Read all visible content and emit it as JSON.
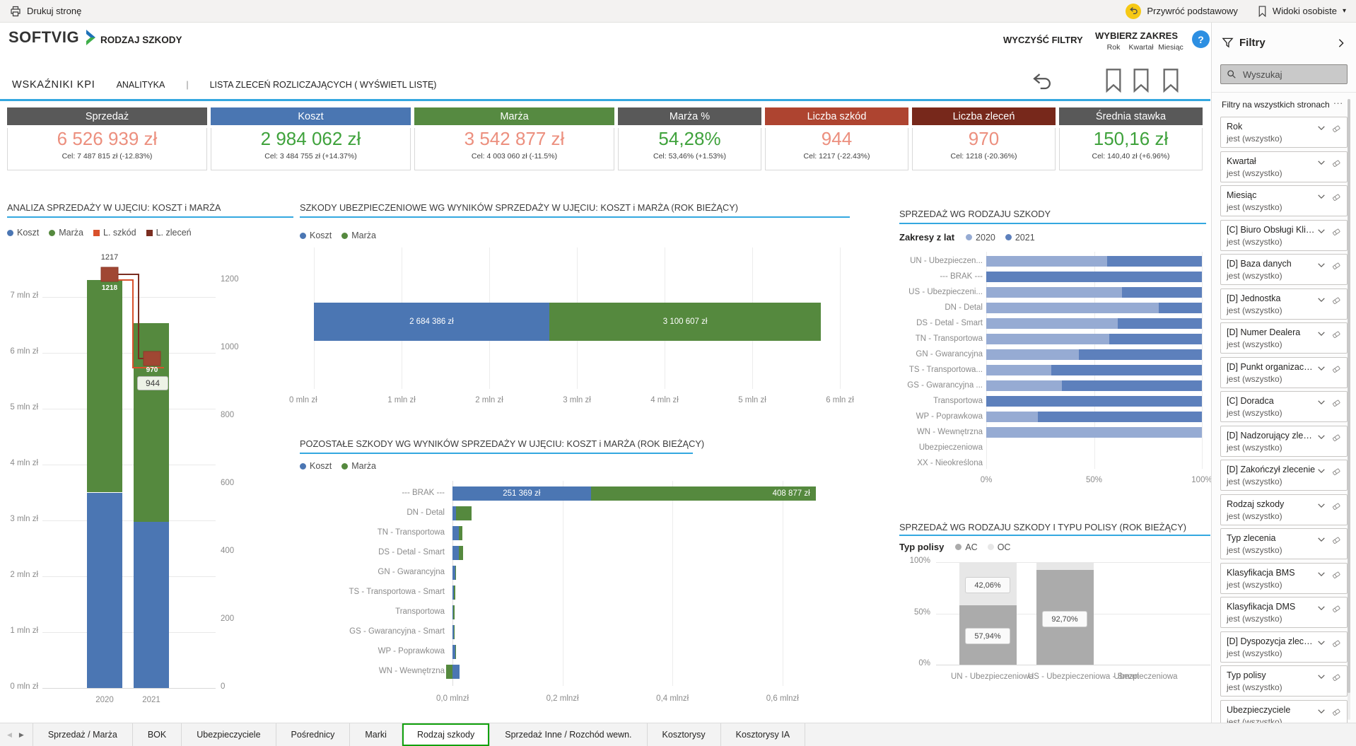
{
  "topbar": {
    "print_label": "Drukuj stronę",
    "reset_label": "Przywróć podstawowy",
    "views_label": "Widoki osobiste",
    "views_caret": "▾"
  },
  "header": {
    "logo_text": "SOFTVIG",
    "title": "RODZAJ SZKODY",
    "clear_filters_label": "WYCZYŚĆ FILTRY",
    "select_range_label": "WYBIERZ ZAKRES",
    "range_options": [
      "Rok",
      "Kwartał",
      "Miesiąc"
    ],
    "help_label": "?"
  },
  "subtabs": {
    "items": [
      {
        "label": "WSKAŹNIKI KPI",
        "style": "primary"
      },
      {
        "label": "ANALITYKA",
        "style": "secondary"
      },
      {
        "label": "|",
        "style": "sep"
      },
      {
        "label": "LISTA ZLECEŃ ROZLICZAJĄCYCH ( WYŚWIETL LISTĘ)",
        "style": "secondary"
      }
    ]
  },
  "kpi_cards": [
    {
      "label": "Sprzedaż",
      "header_color": "#595959",
      "value": "6 526 939 zł",
      "value_color": "#EC8F7E",
      "target": "Cel: 7 487 815 zł (-12.83%)"
    },
    {
      "label": "Koszt",
      "header_color": "#4A76B2",
      "value": "2 984 062 zł",
      "value_color": "#3FA23C",
      "target": "Cel: 3 484 755 zł (+14.37%)"
    },
    {
      "label": "Marża",
      "header_color": "#568A41",
      "value": "3 542 877 zł",
      "value_color": "#EC8F7E",
      "target": "Cel: 4 003 060 zł (-11.5%)"
    },
    {
      "label": "Marża %",
      "header_color": "#595959",
      "value": "54,28%",
      "value_color": "#3FA23C",
      "target": "Cel: 53,46% (+1.53%)"
    },
    {
      "label": "Liczba szkód",
      "header_color": "#AE4430",
      "value": "944",
      "value_color": "#EC8F7E",
      "target": "Cel: 1217 (-22.43%)"
    },
    {
      "label": "Liczba zleceń",
      "header_color": "#77281B",
      "value": "970",
      "value_color": "#EC8F7E",
      "target": "Cel: 1218 (-20.36%)"
    },
    {
      "label": "Średnia stawka",
      "header_color": "#595959",
      "value": "150,16 zł",
      "value_color": "#3FA23C",
      "target": "Cel: 140,40 zł (+6.96%)"
    }
  ],
  "chart_data": [
    {
      "id": "analiza",
      "type": "bar",
      "title": "ANALIZA SPRZEDAŻY W UJĘCIU: KOSZT i MARŻA",
      "legend": [
        {
          "label": "Koszt",
          "color": "#4B76B3",
          "marker": "circle"
        },
        {
          "label": "Marża",
          "color": "#55893E",
          "marker": "circle"
        },
        {
          "label": "L. szkód",
          "color": "#D9512C",
          "marker": "square"
        },
        {
          "label": "L. zleceń",
          "color": "#7B2E21",
          "marker": "square"
        }
      ],
      "categories": [
        "2020",
        "2021"
      ],
      "series": [
        {
          "name": "Koszt",
          "values_mln": [
            3.5,
            2.98
          ],
          "color": "#4B76B3"
        },
        {
          "name": "Marża",
          "values_mln": [
            3.8,
            3.55
          ],
          "color": "#55893E"
        }
      ],
      "line_series": [
        {
          "name": "L. szkód",
          "values": [
            1217,
            944
          ],
          "color": "#D9512C"
        },
        {
          "name": "L. zleceń",
          "values": [
            1218,
            970
          ],
          "color": "#7B2E21"
        }
      ],
      "data_labels": {
        "above_2020": "1217",
        "marker_2020": "1218",
        "marker_2021": "970",
        "callout_2021": "944"
      },
      "y_left": {
        "tick_labels": [
          "7 mln zł",
          "6 mln zł",
          "5 mln zł",
          "4 mln zł",
          "3 mln zł",
          "2 mln zł",
          "1 mln zł",
          "0 mln zł"
        ],
        "tick_values": [
          7,
          6,
          5,
          4,
          3,
          2,
          1,
          0
        ],
        "ylim": [
          0,
          7.6
        ]
      },
      "y_right": {
        "tick_labels": [
          "1200",
          "1000",
          "800",
          "600",
          "400",
          "200",
          "0"
        ],
        "tick_values": [
          1200,
          1000,
          800,
          600,
          400,
          200,
          0
        ],
        "ylim": [
          0,
          1430
        ]
      }
    },
    {
      "id": "szkody",
      "type": "bar",
      "title": "SZKODY UBEZPIECZENIOWE WG WYNIKÓW SPRZEDAŻY W UJĘCIU: KOSZT i MARŻA (ROK BIEŻĄCY)",
      "legend": [
        {
          "label": "Koszt",
          "color": "#4B76B3",
          "marker": "circle"
        },
        {
          "label": "Marża",
          "color": "#55893E",
          "marker": "circle"
        }
      ],
      "segments": [
        {
          "name": "Koszt",
          "value_zl": 2684386,
          "label": "2 684 386 zł",
          "color": "#4B76B3"
        },
        {
          "name": "Marża",
          "value_zl": 3100607,
          "label": "3 100 607 zł",
          "color": "#55893E"
        }
      ],
      "x_ticks": {
        "labels": [
          "0 mln zł",
          "1 mln zł",
          "2 mln zł",
          "3 mln zł",
          "4 mln zł",
          "5 mln zł",
          "6 mln zł"
        ],
        "values": [
          0,
          1,
          2,
          3,
          4,
          5,
          6
        ]
      },
      "xlim_mln": [
        0,
        6
      ]
    },
    {
      "id": "pozostale",
      "type": "bar",
      "title": "POZOSTAŁE SZKODY WG WYNIKÓW SPRZEDAŻY W UJĘCIU: KOSZT i MARŻA (ROK BIEŻĄCY)",
      "legend": [
        {
          "label": "Koszt",
          "color": "#4B76B3",
          "marker": "circle"
        },
        {
          "label": "Marża",
          "color": "#55893E",
          "marker": "circle"
        }
      ],
      "categories": [
        "--- BRAK ---",
        "DN - Detal",
        "TN - Transportowa",
        "DS - Detal - Smart",
        "GN - Gwarancyjna",
        "TS - Transportowa - Smart",
        "Transportowa",
        "GS - Gwarancyjna - Smart",
        "WP - Poprawkowa",
        "WN - Wewnętrzna"
      ],
      "series": [
        {
          "name": "Koszt",
          "color": "#4B76B3",
          "values_mln": [
            0.2514,
            0.007,
            0.012,
            0.012,
            0.005,
            0.002,
            0.001,
            0.002,
            0.005,
            0.013
          ]
        },
        {
          "name": "Marża",
          "color": "#55893E",
          "values_mln": [
            0.4089,
            0.028,
            0.006,
            0.007,
            0.001,
            0.003,
            0.003,
            0.002,
            0.001,
            -0.012
          ]
        }
      ],
      "bar_labels": {
        "koszt_brak": "251 369 zł",
        "marza_brak": "408 877 zł"
      },
      "x_ticks": {
        "labels": [
          "0,0 mlnzł",
          "0,2 mlnzł",
          "0,4 mlnzł",
          "0,6 mlnzł"
        ],
        "values": [
          0,
          0.2,
          0.4,
          0.6
        ]
      },
      "xlim_mln": [
        0,
        0.73
      ]
    },
    {
      "id": "rodzaj",
      "type": "bar",
      "title": "SPRZEDAŻ WG RODZAJU SZKODY",
      "legend_title": "Zakresy z lat",
      "legend": [
        {
          "label": "2020",
          "color": "#96ABD3",
          "marker": "circle"
        },
        {
          "label": "2021",
          "color": "#5D80BC",
          "marker": "circle"
        }
      ],
      "categories": [
        "UN - Ubezpieczen...",
        "--- BRAK ---",
        "US - Ubezpieczeni...",
        "DN - Detal",
        "DS - Detal - Smart",
        "TN - Transportowa",
        "GN - Gwarancyjna",
        "TS - Transportowa...",
        "GS - Gwarancyjna ...",
        "Transportowa",
        "WP - Poprawkowa",
        "WN - Wewnętrzna",
        "Ubezpieczeniowa",
        "XX - Nieokreślona"
      ],
      "series": [
        {
          "name": "2020",
          "color": "#96ABD3",
          "values_pct": [
            56,
            0,
            63,
            80,
            61,
            57,
            43,
            30,
            35,
            0,
            24,
            100,
            0,
            0
          ]
        },
        {
          "name": "2021",
          "color": "#5D80BC",
          "values_pct": [
            44,
            100,
            37,
            20,
            39,
            43,
            57,
            70,
            65,
            100,
            76,
            0,
            0,
            0
          ]
        }
      ],
      "x_ticks": {
        "labels": [
          "0%",
          "50%",
          "100%"
        ],
        "values": [
          0,
          50,
          100
        ]
      }
    },
    {
      "id": "polisy",
      "type": "bar",
      "title": "SPRZEDAŻ WG RODZAJU SZKODY I TYPU POLISY  (ROK BIEŻĄCY)",
      "legend_title": "Typ polisy",
      "legend": [
        {
          "label": "AC",
          "color": "#ABABAB",
          "marker": "circle"
        },
        {
          "label": "OC",
          "color": "#E7E7E7",
          "marker": "circle"
        }
      ],
      "categories": [
        "UN - Ubezpieczeniowa",
        "US - Ubezpieczeniowa - Smart",
        "Ubezpieczeniowa"
      ],
      "series": [
        {
          "name": "AC",
          "color": "#ABABAB",
          "values_pct": [
            57.94,
            92.7,
            null
          ]
        },
        {
          "name": "OC",
          "color": "#E7E7E7",
          "values_pct": [
            42.06,
            7.3,
            null
          ]
        }
      ],
      "data_labels": {
        "oc_un": "42,06%",
        "ac_un": "57,94%",
        "ac_us": "92,70%"
      },
      "y_ticks": {
        "labels": [
          "100%",
          "50%",
          "0%"
        ],
        "values": [
          100,
          50,
          0
        ]
      }
    }
  ],
  "filters_panel": {
    "title": "Filtry",
    "search_placeholder": "Wyszukaj",
    "section_label": "Filtry na wszystkich stronach",
    "more_label": "...",
    "items": [
      {
        "name": "Rok",
        "value": "jest (wszystko)"
      },
      {
        "name": "Kwartał",
        "value": "jest (wszystko)"
      },
      {
        "name": "Miesiąc",
        "value": "jest (wszystko)"
      },
      {
        "name": "[C] Biuro Obsługi Klie...",
        "value": "jest (wszystko)"
      },
      {
        "name": "[D] Baza danych",
        "value": "jest (wszystko)"
      },
      {
        "name": "[D] Jednostka",
        "value": "jest (wszystko)"
      },
      {
        "name": "[D] Numer Dealera",
        "value": "jest (wszystko)"
      },
      {
        "name": "[D] Punkt organizacyjny",
        "value": "jest (wszystko)"
      },
      {
        "name": "[C] Doradca",
        "value": "jest (wszystko)"
      },
      {
        "name": "[D] Nadzorujący zlece...",
        "value": "jest (wszystko)"
      },
      {
        "name": "[D] Zakończył zlecenie",
        "value": "jest (wszystko)"
      },
      {
        "name": "Rodzaj szkody",
        "value": "jest (wszystko)"
      },
      {
        "name": "Typ zlecenia",
        "value": "jest (wszystko)"
      },
      {
        "name": "Klasyfikacja BMS",
        "value": "jest (wszystko)"
      },
      {
        "name": "Klasyfikacja DMS",
        "value": "jest (wszystko)"
      },
      {
        "name": "[D] Dyspozycja zlecenia",
        "value": "jest (wszystko)"
      },
      {
        "name": "Typ polisy",
        "value": "jest (wszystko)"
      },
      {
        "name": "Ubezpieczyciele",
        "value": "jest (wszystko)"
      }
    ]
  },
  "bottom_bar": {
    "prev_icon": "◀",
    "next_icon": "▶",
    "tabs": [
      "Sprzedaż / Marża",
      "BOK",
      "Ubezpieczyciele",
      "Pośrednicy",
      "Marki",
      "Rodzaj szkody",
      "Sprzedaż Inne / Rozchód wewn.",
      "Kosztorysy",
      "Kosztorysy IA"
    ],
    "active_tab": "Rodzaj szkody"
  },
  "colors": {
    "accent_underline": "#34A8E0",
    "bar_blue": "#4B76B3",
    "bar_green": "#55893E",
    "value_negative": "#EC8F7E",
    "value_positive": "#3FA23C",
    "marker_fill": "#A04733",
    "line_maroon": "#7B2E21",
    "line_orange": "#D9512C"
  }
}
